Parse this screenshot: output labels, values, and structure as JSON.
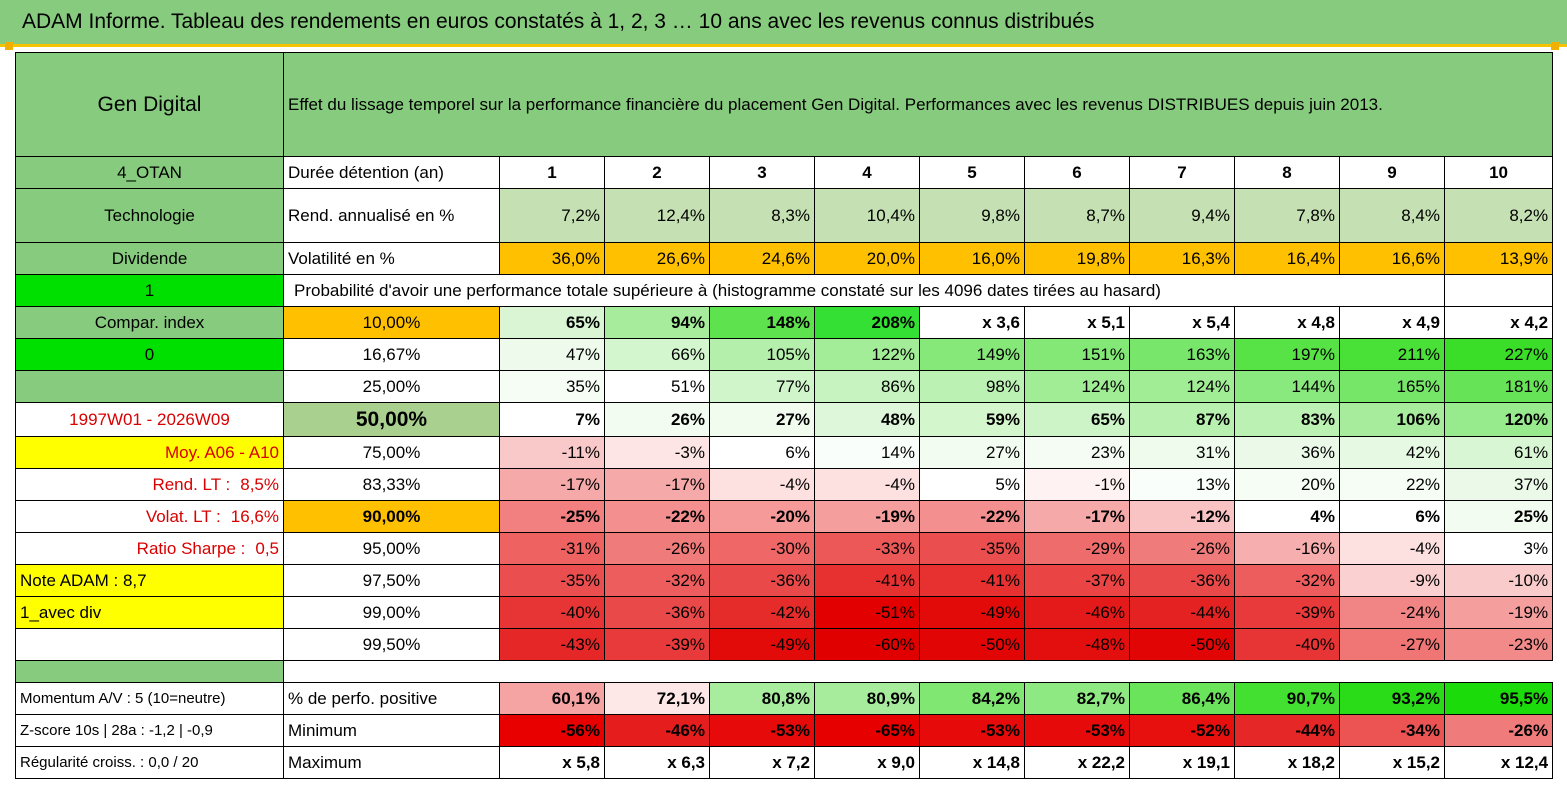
{
  "page_title": "ADAM Informe. Tableau des rendements en euros constatés à 1, 2, 3 … 10 ans avec les revenus connus distribués",
  "header": {
    "fund_name": "Gen Digital",
    "description": "Effet du lissage temporel sur la performance financière du placement Gen Digital. Performances avec les revenus DISTRIBUES depuis juin 2013."
  },
  "left_labels": {
    "code": "4_OTAN",
    "sector": "Technologie",
    "income_type": "Dividende",
    "flag_1": "1",
    "compar_index": "Compar. index",
    "flag_0": "0",
    "date_range": "1997W01 - 2026W09",
    "moy": "Moy. A06 - A10",
    "rend_lt_label": "Rend. LT :",
    "rend_lt_value": "8,5%",
    "volat_lt_label": "Volat. LT :",
    "volat_lt_value": "16,6%",
    "sharpe_label": "Ratio Sharpe :",
    "sharpe_value": "0,5",
    "note_adam": "Note ADAM : 8,7",
    "avec_div": "1_avec div",
    "momentum": "Momentum A/V : 5 (10=neutre)",
    "zscore": "Z-score 10s | 28a : -1,2 | -0,9",
    "regularite": "Régularité croiss. : 0,0 / 20"
  },
  "row_labels": {
    "duration": "Durée détention (an)",
    "rend": "Rend. annualisé en %",
    "volat": "Volatilité en %",
    "proba": "Probabilité d'avoir une performance totale supérieure à (histogramme constaté sur les 4096 dates tirées au hasard)",
    "perf_pos": "% de perfo. positive",
    "minimum": "Minimum",
    "maximum": "Maximum"
  },
  "years": [
    "1",
    "2",
    "3",
    "4",
    "5",
    "6",
    "7",
    "8",
    "9",
    "10"
  ],
  "rend_annualise": [
    "7,2%",
    "12,4%",
    "8,3%",
    "10,4%",
    "9,8%",
    "8,7%",
    "9,4%",
    "7,8%",
    "8,4%",
    "8,2%"
  ],
  "volatilite": [
    "36,0%",
    "26,6%",
    "24,6%",
    "20,0%",
    "16,0%",
    "19,8%",
    "16,3%",
    "16,4%",
    "16,6%",
    "13,9%"
  ],
  "volat_colors": [
    "#ffc000",
    "#ffc000",
    "#ffc000",
    "#ffc000",
    "#ffc000",
    "#ffc000",
    "#ffc000",
    "#ffc000",
    "#ffc000",
    "#ffc000"
  ],
  "probability_rows": [
    {
      "pct": "10,00%",
      "values": [
        "65%",
        "94%",
        "148%",
        "208%",
        "x 3,6",
        "x 5,1",
        "x 5,4",
        "x 4,8",
        "x 4,9",
        "x 4,2"
      ],
      "colors": [
        "#d9f5d3",
        "#a6ec9c",
        "#5ee24e",
        "#33e033",
        "#ffffff",
        "#ffffff",
        "#ffffff",
        "#ffffff",
        "#ffffff",
        "#ffffff"
      ]
    },
    {
      "pct": "16,67%",
      "values": [
        "47%",
        "66%",
        "105%",
        "122%",
        "149%",
        "151%",
        "163%",
        "197%",
        "211%",
        "227%"
      ],
      "colors": [
        "#eefbec",
        "#d4f6cf",
        "#b4f0ab",
        "#a3ed98",
        "#86e879",
        "#84e877",
        "#78e66a",
        "#57e246",
        "#49e037",
        "#3ade28"
      ]
    },
    {
      "pct": "25,00%",
      "values": [
        "35%",
        "51%",
        "77%",
        "86%",
        "98%",
        "124%",
        "124%",
        "144%",
        "165%",
        "181%"
      ],
      "colors": [
        "#f6fdf5",
        "#e8faе5",
        "#d0f5ca",
        "#c6f3bf",
        "#bcf1b4",
        "#a1ed96",
        "#a1ed96",
        "#8ae97e",
        "#76e668",
        "#66e356"
      ]
    },
    {
      "pct": "50,00%",
      "values": [
        "7%",
        "26%",
        "27%",
        "48%",
        "59%",
        "65%",
        "87%",
        "83%",
        "106%",
        "120%"
      ],
      "colors": [
        "#ffffff",
        "#f2fcf0",
        "#f1fcef",
        "#def7da",
        "#d3f6cd",
        "#cdf4c7",
        "#b8f0b0",
        "#bcf1b4",
        "#a6ec9c",
        "#98eb8c"
      ]
    },
    {
      "pct": "75,00%",
      "values": [
        "-11%",
        "-3%",
        "6%",
        "14%",
        "27%",
        "23%",
        "31%",
        "36%",
        "42%",
        "61%"
      ],
      "colors": [
        "#f9c8c8",
        "#fde5e5",
        "#ffffff",
        "#fafefa",
        "#f2fcf0",
        "#f4fcf3",
        "#effbed",
        "#ebfae8",
        "#e6f9e3",
        "#d8f6d3"
      ]
    },
    {
      "pct": "83,33%",
      "values": [
        "-17%",
        "-17%",
        "-4%",
        "-4%",
        "5%",
        "-1%",
        "13%",
        "20%",
        "22%",
        "37%"
      ],
      "colors": [
        "#f6a9a9",
        "#f6a9a9",
        "#fde0e0",
        "#fde0e0",
        "#ffffff",
        "#fff2f2",
        "#fafefa",
        "#f6fdf5",
        "#f5fdf4",
        "#ebfae8"
      ]
    },
    {
      "pct": "90,00%",
      "values": [
        "-25%",
        "-22%",
        "-20%",
        "-19%",
        "-22%",
        "-17%",
        "-12%",
        "4%",
        "6%",
        "25%"
      ],
      "colors": [
        "#f28080",
        "#f48f8f",
        "#f59999",
        "#f59e9e",
        "#f48f8f",
        "#f6a9a9",
        "#f9c3c3",
        "#ffffff",
        "#ffffff",
        "#f3fcf1"
      ]
    },
    {
      "pct": "95,00%",
      "values": [
        "-31%",
        "-26%",
        "-30%",
        "-33%",
        "-35%",
        "-29%",
        "-26%",
        "-16%",
        "-4%",
        "3%"
      ],
      "colors": [
        "#ee6262",
        "#f07b7b",
        "#ef6767",
        "#ec5858",
        "#eb4e4e",
        "#ef6c6c",
        "#f07b7b",
        "#f6aeae",
        "#fde0e0",
        "#ffffff"
      ]
    },
    {
      "pct": "97,50%",
      "values": [
        "-35%",
        "-32%",
        "-36%",
        "-41%",
        "-41%",
        "-37%",
        "-36%",
        "-32%",
        "-9%",
        "-10%"
      ],
      "colors": [
        "#eb4e4e",
        "#ed5d5d",
        "#ea4949",
        "#e73030",
        "#e73030",
        "#ea4444",
        "#ea4949",
        "#ed5d5d",
        "#fad0d0",
        "#f9cbcb"
      ]
    },
    {
      "pct": "99,00%",
      "values": [
        "-40%",
        "-36%",
        "-42%",
        "-51%",
        "-49%",
        "-46%",
        "-44%",
        "-39%",
        "-24%",
        "-19%"
      ],
      "colors": [
        "#e73535",
        "#ea4949",
        "#e62b2b",
        "#e20000",
        "#e30a0a",
        "#e41919",
        "#e52222",
        "#e83a3a",
        "#f18484",
        "#f59e9e"
      ]
    },
    {
      "pct": "99,50%",
      "values": [
        "-43%",
        "-39%",
        "-49%",
        "-60%",
        "-50%",
        "-48%",
        "-50%",
        "-40%",
        "-27%",
        "-23%"
      ],
      "colors": [
        "#e52727",
        "#e83a3a",
        "#e30a0a",
        "#e00000",
        "#e20505",
        "#e30f0f",
        "#e20505",
        "#e73535",
        "#f07676",
        "#f28a8a"
      ]
    }
  ],
  "perf_positive": [
    "60,1%",
    "72,1%",
    "80,8%",
    "80,9%",
    "84,2%",
    "82,7%",
    "86,4%",
    "90,7%",
    "93,2%",
    "95,5%"
  ],
  "perf_positive_colors": [
    "#f6a3a3",
    "#fde7e7",
    "#a8ec9e",
    "#a7ec9d",
    "#80e773",
    "#8ee982",
    "#6ae45b",
    "#43df31",
    "#2adc18",
    "#1cdb0a"
  ],
  "minimum": [
    "-56%",
    "-46%",
    "-53%",
    "-65%",
    "-53%",
    "-53%",
    "-52%",
    "-44%",
    "-34%",
    "-26%"
  ],
  "minimum_colors": [
    "#e80000",
    "#e51d1d",
    "#e70a0a",
    "#e60000",
    "#e70a0a",
    "#e70a0a",
    "#e80f0f",
    "#e62727",
    "#ec5353",
    "#f07b7b"
  ],
  "maximum": [
    "x 5,8",
    "x 6,3",
    "x 7,2",
    "x 9,0",
    "x 14,8",
    "x 22,2",
    "x 19,1",
    "x 18,2",
    "x 15,2",
    "x 12,4"
  ]
}
